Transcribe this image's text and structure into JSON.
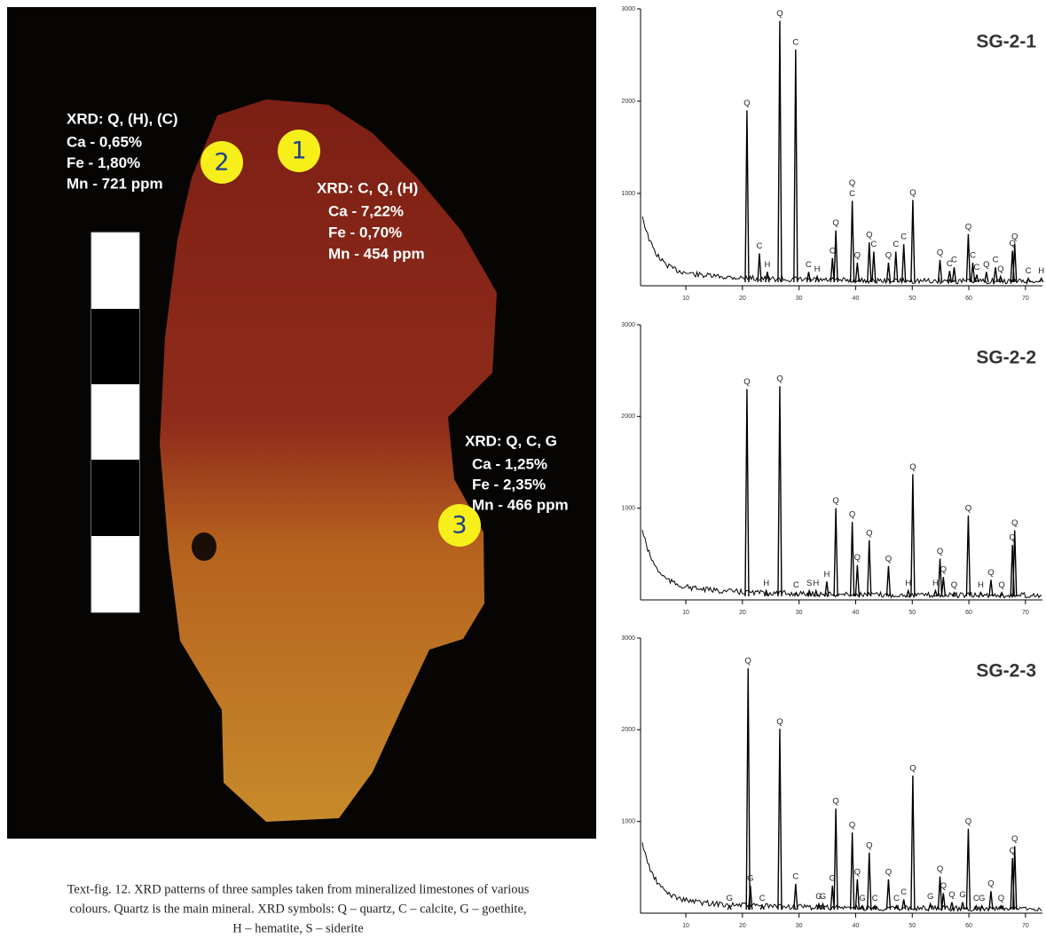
{
  "photo": {
    "annotations": [
      {
        "marker": "1",
        "lines": [
          "XRD: C, Q, (H)",
          "Ca - 7,22%",
          "Fe - 0,70%",
          "Mn - 454 ppm"
        ]
      },
      {
        "marker": "2",
        "lines": [
          "XRD: Q, (H), (C)",
          "Ca - 0,65%",
          "Fe - 1,80%",
          "Mn - 721 ppm"
        ]
      },
      {
        "marker": "3",
        "lines": [
          "XRD: Q, C, G",
          "Ca - 1,25%",
          "Fe - 2,35%",
          "Mn - 466 ppm"
        ]
      }
    ]
  },
  "caption": [
    "Text-fig. 12. XRD patterns of three samples taken from mineralized limestones of various",
    "colours. Quartz is the main mineral. XRD symbols: Q – quartz, C – calcite, G – goethite,",
    "H – hematite, S – siderite"
  ],
  "chart_data": [
    {
      "type": "line",
      "title": "SG-2-1",
      "color": "#000000",
      "xlim": [
        2,
        73
      ],
      "ylim": [
        0,
        3000
      ],
      "xticks": [
        10,
        20,
        30,
        40,
        50,
        60,
        70
      ],
      "yticks": [
        1000,
        2000,
        3000
      ],
      "x": [
        20.8,
        23.0,
        24.4,
        26.6,
        29.4,
        31.7,
        33.2,
        35.9,
        36.5,
        39.4,
        40.3,
        42.4,
        43.2,
        45.8,
        47.1,
        48.5,
        50.1,
        54.9,
        56.6,
        57.4,
        59.9,
        60.7,
        61.4,
        63.1,
        64.7,
        65.6,
        67.7,
        68.1,
        70.5,
        72.8
      ],
      "values": [
        1900,
        350,
        150,
        2870,
        2560,
        150,
        100,
        300,
        600,
        920,
        250,
        470,
        370,
        250,
        370,
        450,
        930,
        280,
        160,
        200,
        560,
        250,
        120,
        150,
        200,
        100,
        380,
        450,
        80,
        80
      ],
      "peak_labels": [
        [
          "Q"
        ],
        [
          "C"
        ],
        [
          "H"
        ],
        [
          "Q"
        ],
        [
          "C"
        ],
        [
          "C"
        ],
        [
          "H"
        ],
        [
          "C"
        ],
        [
          "Q"
        ],
        [
          "Q",
          "C"
        ],
        [
          "Q"
        ],
        [
          "Q"
        ],
        [
          "C"
        ],
        [
          "Q"
        ],
        [
          "C"
        ],
        [
          "C"
        ],
        [
          "Q"
        ],
        [
          "Q"
        ],
        [
          "C"
        ],
        [
          "C"
        ],
        [
          "Q"
        ],
        [
          "C"
        ],
        [
          "C"
        ],
        [
          "Q"
        ],
        [
          "C"
        ],
        [
          "Q"
        ],
        [
          "Q"
        ],
        [
          "Q"
        ],
        [
          "C"
        ],
        [
          "H"
        ]
      ]
    },
    {
      "type": "line",
      "title": "SG-2-2",
      "color": "#000000",
      "xlim": [
        2,
        73
      ],
      "ylim": [
        0,
        3000
      ],
      "xticks": [
        10,
        20,
        30,
        40,
        50,
        60,
        70
      ],
      "yticks": [
        1000,
        2000,
        3000
      ],
      "x": [
        20.8,
        24.2,
        26.6,
        29.5,
        31.8,
        33.0,
        34.9,
        36.5,
        39.4,
        40.3,
        42.4,
        45.8,
        49.3,
        50.1,
        54.1,
        54.9,
        55.5,
        57.4,
        59.9,
        62.1,
        63.9,
        65.8,
        67.7,
        68.1
      ],
      "values": [
        2300,
        100,
        2330,
        80,
        100,
        100,
        200,
        1000,
        850,
        380,
        650,
        370,
        100,
        1370,
        100,
        450,
        250,
        80,
        920,
        80,
        220,
        80,
        600,
        760
      ],
      "peak_labels": [
        [
          "Q"
        ],
        [
          "H"
        ],
        [
          "Q"
        ],
        [
          "C"
        ],
        [
          "S"
        ],
        [
          "H"
        ],
        [
          "H"
        ],
        [
          "Q"
        ],
        [
          "Q"
        ],
        [
          "Q"
        ],
        [
          "Q"
        ],
        [
          "Q"
        ],
        [
          "H"
        ],
        [
          "Q"
        ],
        [
          "H"
        ],
        [
          "Q"
        ],
        [
          "Q"
        ],
        [
          "Q"
        ],
        [
          "Q"
        ],
        [
          "H"
        ],
        [
          "Q"
        ],
        [
          "Q"
        ],
        [
          "Q"
        ],
        [
          "Q"
        ]
      ]
    },
    {
      "type": "line",
      "title": "SG-2-3",
      "color": "#000000",
      "xlim": [
        2,
        73
      ],
      "ylim": [
        0,
        3000
      ],
      "xticks": [
        10,
        20,
        30,
        40,
        50,
        60,
        70
      ],
      "yticks": [
        1000,
        2000,
        3000
      ],
      "x": [
        17.7,
        21.0,
        21.4,
        23.5,
        26.6,
        29.4,
        33.5,
        34.2,
        35.9,
        36.5,
        39.4,
        40.3,
        41.2,
        42.4,
        43.4,
        45.8,
        47.2,
        48.5,
        50.1,
        53.2,
        54.9,
        55.5,
        57.0,
        58.9,
        59.9,
        61.3,
        62.3,
        63.9,
        65.7,
        67.7,
        68.1
      ],
      "values": [
        80,
        2670,
        300,
        80,
        2010,
        320,
        100,
        100,
        300,
        1140,
        880,
        370,
        80,
        660,
        80,
        370,
        80,
        150,
        1500,
        100,
        400,
        220,
        120,
        120,
        920,
        80,
        80,
        240,
        80,
        600,
        730
      ],
      "peak_labels": [
        [
          "G"
        ],
        [
          "Q"
        ],
        [
          "G"
        ],
        [
          "C"
        ],
        [
          "Q"
        ],
        [
          "C"
        ],
        [
          "G"
        ],
        [
          "G"
        ],
        [
          "G"
        ],
        [
          "Q"
        ],
        [
          "Q"
        ],
        [
          "Q"
        ],
        [
          "G"
        ],
        [
          "Q"
        ],
        [
          "C"
        ],
        [
          "Q"
        ],
        [
          "C"
        ],
        [
          "C"
        ],
        [
          "Q"
        ],
        [
          "G"
        ],
        [
          "Q"
        ],
        [
          "Q"
        ],
        [
          "Q"
        ],
        [
          "G"
        ],
        [
          "Q"
        ],
        [
          "C"
        ],
        [
          "G"
        ],
        [
          "Q"
        ],
        [
          "Q"
        ],
        [
          "Q"
        ],
        [
          "Q"
        ]
      ]
    }
  ]
}
